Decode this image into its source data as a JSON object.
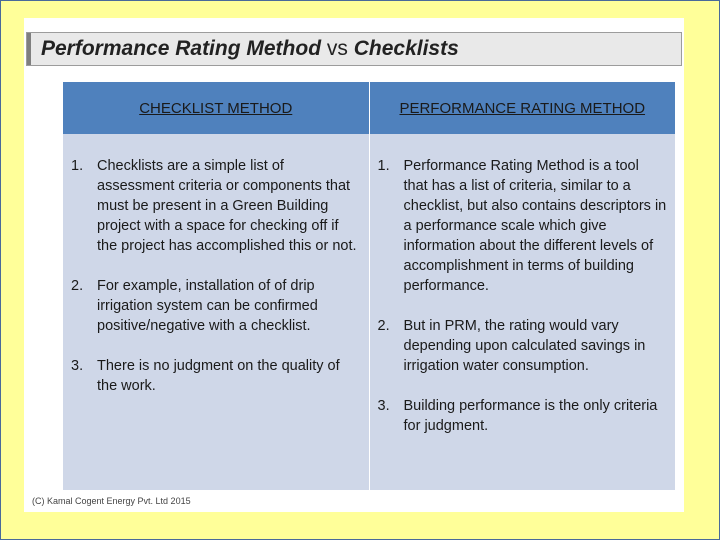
{
  "slide": {
    "title_part1": "Performance Rating Method",
    "title_vs": " vs ",
    "title_part2": "Checklists"
  },
  "table": {
    "headers": [
      "CHECKLIST METHOD",
      "PERFORMANCE RATING METHOD"
    ],
    "checklist": [
      {
        "num": "1.",
        "text": "Checklists are a simple list of assessment criteria or components that must be present in a Green Building project with a space for checking off if the project has accomplished this or not."
      },
      {
        "num": "2.",
        "text": "For example, installation of of drip irrigation system can be confirmed positive/negative with a checklist."
      },
      {
        "num": "3.",
        "text": "There is no judgment on the quality of the work."
      }
    ],
    "prm": [
      {
        "num": "1.",
        "text": "Performance Rating Method is a tool that has a list of criteria, similar to a checklist, but also contains descriptors in a performance scale which give information about the different levels of accomplishment in terms of building performance."
      },
      {
        "num": "2.",
        "text": "But in PRM, the rating would vary depending upon calculated savings in irrigation water consumption."
      },
      {
        "num": "3.",
        "text": "Building performance is the only criteria for judgment."
      }
    ]
  },
  "footer": {
    "copyright": "(C) Kamal Cogent Energy Pvt. Ltd 2015"
  },
  "colors": {
    "background": "#ffff99",
    "header_fill": "#4f81bd",
    "cell_fill": "#cfd7e8"
  }
}
